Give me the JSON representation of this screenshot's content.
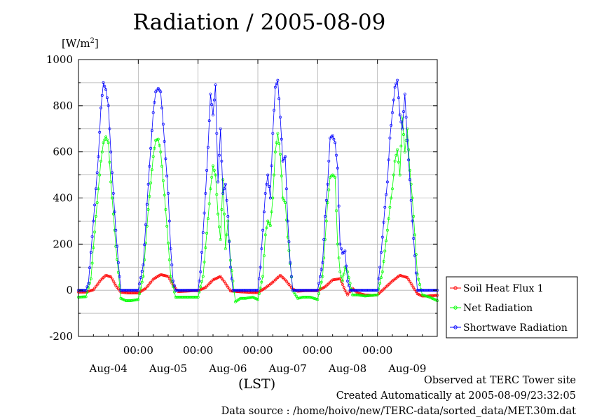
{
  "header": {
    "title": "Radiation / 2005-08-09",
    "unit_base": "[W/m",
    "unit_exp": "2",
    "unit_close": "]"
  },
  "footer": {
    "observed": "Observed at TERC Tower site",
    "created": "Created Automatically at 2005-08-09/23:32:05",
    "source": "Data source : /home/hoivo/new/TERC-data/sorted_data/MET.30m.dat"
  },
  "chart_data": {
    "type": "line",
    "title": "Radiation / 2005-08-09",
    "ylabel": "[W/m2]",
    "xlabel": "(LST)",
    "ylim": [
      -200,
      1000
    ],
    "yticks": [
      -200,
      0,
      200,
      400,
      600,
      800,
      1000
    ],
    "xlim_hours": [
      0,
      144
    ],
    "x_tick_labels": [
      {
        "time": "00:00",
        "date": "Aug-04",
        "hour": 24
      },
      {
        "time": "00:00",
        "date": "Aug-05",
        "hour": 48
      },
      {
        "time": "00:00",
        "date": "Aug-06",
        "hour": 72
      },
      {
        "time": "00:00",
        "date": "Aug-07",
        "hour": 96
      },
      {
        "time": "00:00",
        "date": "Aug-08",
        "hour": 120
      },
      {
        "time": "00:00",
        "date": "Aug-09",
        "hour": 144
      }
    ],
    "grid": true,
    "legend_position": "right",
    "series": [
      {
        "name": "Soil Heat Flux 1",
        "color": "#ff0000",
        "marker": "circle",
        "points": [
          [
            0,
            -8
          ],
          [
            3,
            -8
          ],
          [
            6,
            2
          ],
          [
            9,
            45
          ],
          [
            11,
            65
          ],
          [
            13,
            58
          ],
          [
            15,
            20
          ],
          [
            17,
            -8
          ],
          [
            20,
            -12
          ],
          [
            24,
            -12
          ],
          [
            27,
            8
          ],
          [
            30,
            48
          ],
          [
            33,
            68
          ],
          [
            36,
            60
          ],
          [
            38,
            22
          ],
          [
            40,
            -6
          ],
          [
            43,
            -4
          ],
          [
            46,
            -2
          ],
          [
            48,
            -2
          ],
          [
            51,
            12
          ],
          [
            54,
            45
          ],
          [
            57,
            60
          ],
          [
            59,
            30
          ],
          [
            61,
            -3
          ],
          [
            64,
            -6
          ],
          [
            67,
            -8
          ],
          [
            70,
            -10
          ],
          [
            72,
            -10
          ],
          [
            75,
            10
          ],
          [
            78,
            35
          ],
          [
            81,
            65
          ],
          [
            83,
            45
          ],
          [
            86,
            5
          ],
          [
            88,
            -4
          ],
          [
            91,
            -2
          ],
          [
            94,
            -2
          ],
          [
            96,
            -2
          ],
          [
            99,
            15
          ],
          [
            102,
            45
          ],
          [
            105,
            50
          ],
          [
            107,
            0
          ],
          [
            108,
            -20
          ],
          [
            110,
            8
          ],
          [
            112,
            -12
          ],
          [
            115,
            -20
          ],
          [
            118,
            -22
          ],
          [
            120,
            -20
          ],
          [
            123,
            10
          ],
          [
            126,
            40
          ],
          [
            129,
            65
          ],
          [
            132,
            55
          ],
          [
            134,
            20
          ],
          [
            136,
            -15
          ],
          [
            138,
            -25
          ],
          [
            140,
            -25
          ],
          [
            144,
            -22
          ]
        ]
      },
      {
        "name": "Net Radiation",
        "color": "#00ff00",
        "marker": "circle",
        "points": [
          [
            0,
            -30
          ],
          [
            3,
            -28
          ],
          [
            5,
            50
          ],
          [
            7,
            320
          ],
          [
            9,
            560
          ],
          [
            10,
            640
          ],
          [
            11,
            665
          ],
          [
            12,
            640
          ],
          [
            13,
            470
          ],
          [
            15,
            190
          ],
          [
            17,
            -35
          ],
          [
            19,
            -45
          ],
          [
            21,
            -45
          ],
          [
            24,
            -40
          ],
          [
            26,
            60
          ],
          [
            28,
            350
          ],
          [
            30,
            580
          ],
          [
            31,
            650
          ],
          [
            32,
            655
          ],
          [
            33,
            600
          ],
          [
            35,
            350
          ],
          [
            37,
            60
          ],
          [
            39,
            -30
          ],
          [
            41,
            -30
          ],
          [
            44,
            -30
          ],
          [
            48,
            -30
          ],
          [
            50,
            60
          ],
          [
            52,
            310
          ],
          [
            53,
            440
          ],
          [
            54,
            540
          ],
          [
            55,
            500
          ],
          [
            56,
            330
          ],
          [
            57,
            220
          ],
          [
            58,
            480
          ],
          [
            59,
            180
          ],
          [
            60,
            300
          ],
          [
            61,
            130
          ],
          [
            63,
            -50
          ],
          [
            65,
            -35
          ],
          [
            67,
            -35
          ],
          [
            70,
            -30
          ],
          [
            72,
            -40
          ],
          [
            74,
            60
          ],
          [
            75,
            240
          ],
          [
            76,
            300
          ],
          [
            77,
            280
          ],
          [
            78,
            400
          ],
          [
            79,
            600
          ],
          [
            80,
            680
          ],
          [
            81,
            590
          ],
          [
            82,
            400
          ],
          [
            83,
            380
          ],
          [
            84,
            230
          ],
          [
            86,
            0
          ],
          [
            88,
            -35
          ],
          [
            90,
            -30
          ],
          [
            93,
            -30
          ],
          [
            96,
            -40
          ],
          [
            98,
            60
          ],
          [
            99,
            220
          ],
          [
            100,
            380
          ],
          [
            101,
            490
          ],
          [
            102,
            500
          ],
          [
            103,
            490
          ],
          [
            104,
            200
          ],
          [
            105,
            80
          ],
          [
            106,
            40
          ],
          [
            107,
            100
          ],
          [
            108,
            80
          ],
          [
            110,
            -20
          ],
          [
            112,
            -20
          ],
          [
            115,
            -25
          ],
          [
            120,
            -20
          ],
          [
            122,
            80
          ],
          [
            124,
            260
          ],
          [
            125,
            360
          ],
          [
            126,
            440
          ],
          [
            127,
            560
          ],
          [
            128,
            610
          ],
          [
            129,
            500
          ],
          [
            130,
            750
          ],
          [
            131,
            600
          ],
          [
            132,
            700
          ],
          [
            133,
            520
          ],
          [
            134,
            400
          ],
          [
            135,
            240
          ],
          [
            136,
            70
          ],
          [
            138,
            -20
          ],
          [
            141,
            -30
          ],
          [
            144,
            -45
          ]
        ]
      },
      {
        "name": "Shortwave Radiation",
        "color": "#0000ff",
        "marker": "circle",
        "points": [
          [
            0,
            0
          ],
          [
            3,
            0
          ],
          [
            4,
            30
          ],
          [
            6,
            300
          ],
          [
            8,
            580
          ],
          [
            9,
            790
          ],
          [
            10,
            900
          ],
          [
            11,
            870
          ],
          [
            12,
            800
          ],
          [
            13,
            600
          ],
          [
            14,
            420
          ],
          [
            15,
            260
          ],
          [
            16,
            120
          ],
          [
            17,
            0
          ],
          [
            20,
            0
          ],
          [
            24,
            0
          ],
          [
            26,
            110
          ],
          [
            28,
            460
          ],
          [
            30,
            770
          ],
          [
            31,
            860
          ],
          [
            32,
            875
          ],
          [
            33,
            860
          ],
          [
            34,
            720
          ],
          [
            36,
            420
          ],
          [
            37,
            180
          ],
          [
            38,
            40
          ],
          [
            39,
            0
          ],
          [
            44,
            0
          ],
          [
            48,
            0
          ],
          [
            49,
            80
          ],
          [
            51,
            420
          ],
          [
            52,
            620
          ],
          [
            53,
            850
          ],
          [
            54,
            760
          ],
          [
            55,
            890
          ],
          [
            56,
            470
          ],
          [
            57,
            700
          ],
          [
            58,
            420
          ],
          [
            59,
            460
          ],
          [
            60,
            320
          ],
          [
            61,
            100
          ],
          [
            62,
            0
          ],
          [
            66,
            0
          ],
          [
            72,
            0
          ],
          [
            73,
            100
          ],
          [
            75,
            420
          ],
          [
            76,
            500
          ],
          [
            77,
            400
          ],
          [
            78,
            680
          ],
          [
            79,
            880
          ],
          [
            80,
            910
          ],
          [
            81,
            750
          ],
          [
            82,
            560
          ],
          [
            83,
            580
          ],
          [
            84,
            300
          ],
          [
            85,
            120
          ],
          [
            86,
            0
          ],
          [
            92,
            0
          ],
          [
            96,
            0
          ],
          [
            98,
            120
          ],
          [
            99,
            320
          ],
          [
            100,
            460
          ],
          [
            101,
            660
          ],
          [
            102,
            670
          ],
          [
            103,
            640
          ],
          [
            104,
            530
          ],
          [
            105,
            200
          ],
          [
            106,
            160
          ],
          [
            107,
            170
          ],
          [
            108,
            40
          ],
          [
            109,
            0
          ],
          [
            115,
            0
          ],
          [
            120,
            0
          ],
          [
            121,
            100
          ],
          [
            123,
            360
          ],
          [
            124,
            470
          ],
          [
            125,
            660
          ],
          [
            126,
            770
          ],
          [
            127,
            880
          ],
          [
            128,
            910
          ],
          [
            129,
            760
          ],
          [
            130,
            700
          ],
          [
            131,
            850
          ],
          [
            132,
            650
          ],
          [
            133,
            480
          ],
          [
            134,
            300
          ],
          [
            135,
            150
          ],
          [
            136,
            0
          ],
          [
            144,
            0
          ]
        ]
      }
    ]
  }
}
